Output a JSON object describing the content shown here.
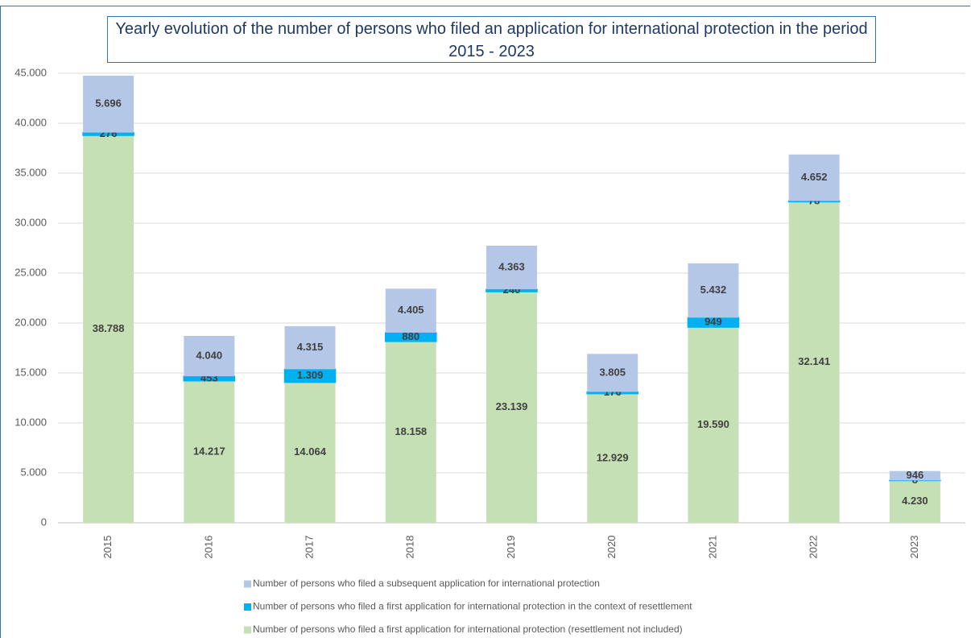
{
  "chart_data": {
    "type": "stacked_bar",
    "title": "Yearly evolution of the number of persons who filed an application for international protection in the period 2015 - 2023",
    "categories": [
      "2015",
      "2016",
      "2017",
      "2018",
      "2019",
      "2020",
      "2021",
      "2022",
      "2023"
    ],
    "series": [
      {
        "name": "Number of persons who filed a first application for international protection (resettlement not included)",
        "color": "#c5e0b4",
        "values": [
          38788,
          14217,
          14064,
          18158,
          23139,
          12929,
          19590,
          32141,
          4230
        ],
        "value_labels": [
          "38.788",
          "14.217",
          "14.064",
          "18.158",
          "23.139",
          "12.929",
          "19.590",
          "32.141",
          "4.230"
        ]
      },
      {
        "name": "Number of persons who filed a first application for international protection in the context of resettlement",
        "color": "#00b0f0",
        "values": [
          276,
          453,
          1309,
          880,
          240,
          176,
          949,
          78,
          8
        ],
        "value_labels": [
          "276",
          "453",
          "1.309",
          "880",
          "240",
          "176",
          "949",
          "78",
          "8"
        ]
      },
      {
        "name": "Number of persons who filed a subsequent application for international protection",
        "color": "#b4c7e7",
        "values": [
          5696,
          4040,
          4315,
          4405,
          4363,
          3805,
          5432,
          4652,
          946
        ],
        "value_labels": [
          "5.696",
          "4.040",
          "4.315",
          "4.405",
          "4.363",
          "3.805",
          "5.432",
          "4.652",
          "946"
        ]
      }
    ],
    "ylim": [
      0,
      45000
    ],
    "yticks": [
      0,
      {
        "value": 5000,
        "label": "5.000"
      },
      {
        "value": 10000,
        "label": "10.000"
      },
      {
        "value": 15000,
        "label": "15.000"
      },
      {
        "value": 20000,
        "label": "20.000"
      },
      {
        "value": 25000,
        "label": "25.000"
      },
      {
        "value": 30000,
        "label": "30.000"
      },
      {
        "value": 35000,
        "label": "35.000"
      },
      {
        "value": 40000,
        "label": "40.000"
      },
      {
        "value": 45000,
        "label": "45.000"
      }
    ],
    "grid": true,
    "legend": "bottom"
  }
}
